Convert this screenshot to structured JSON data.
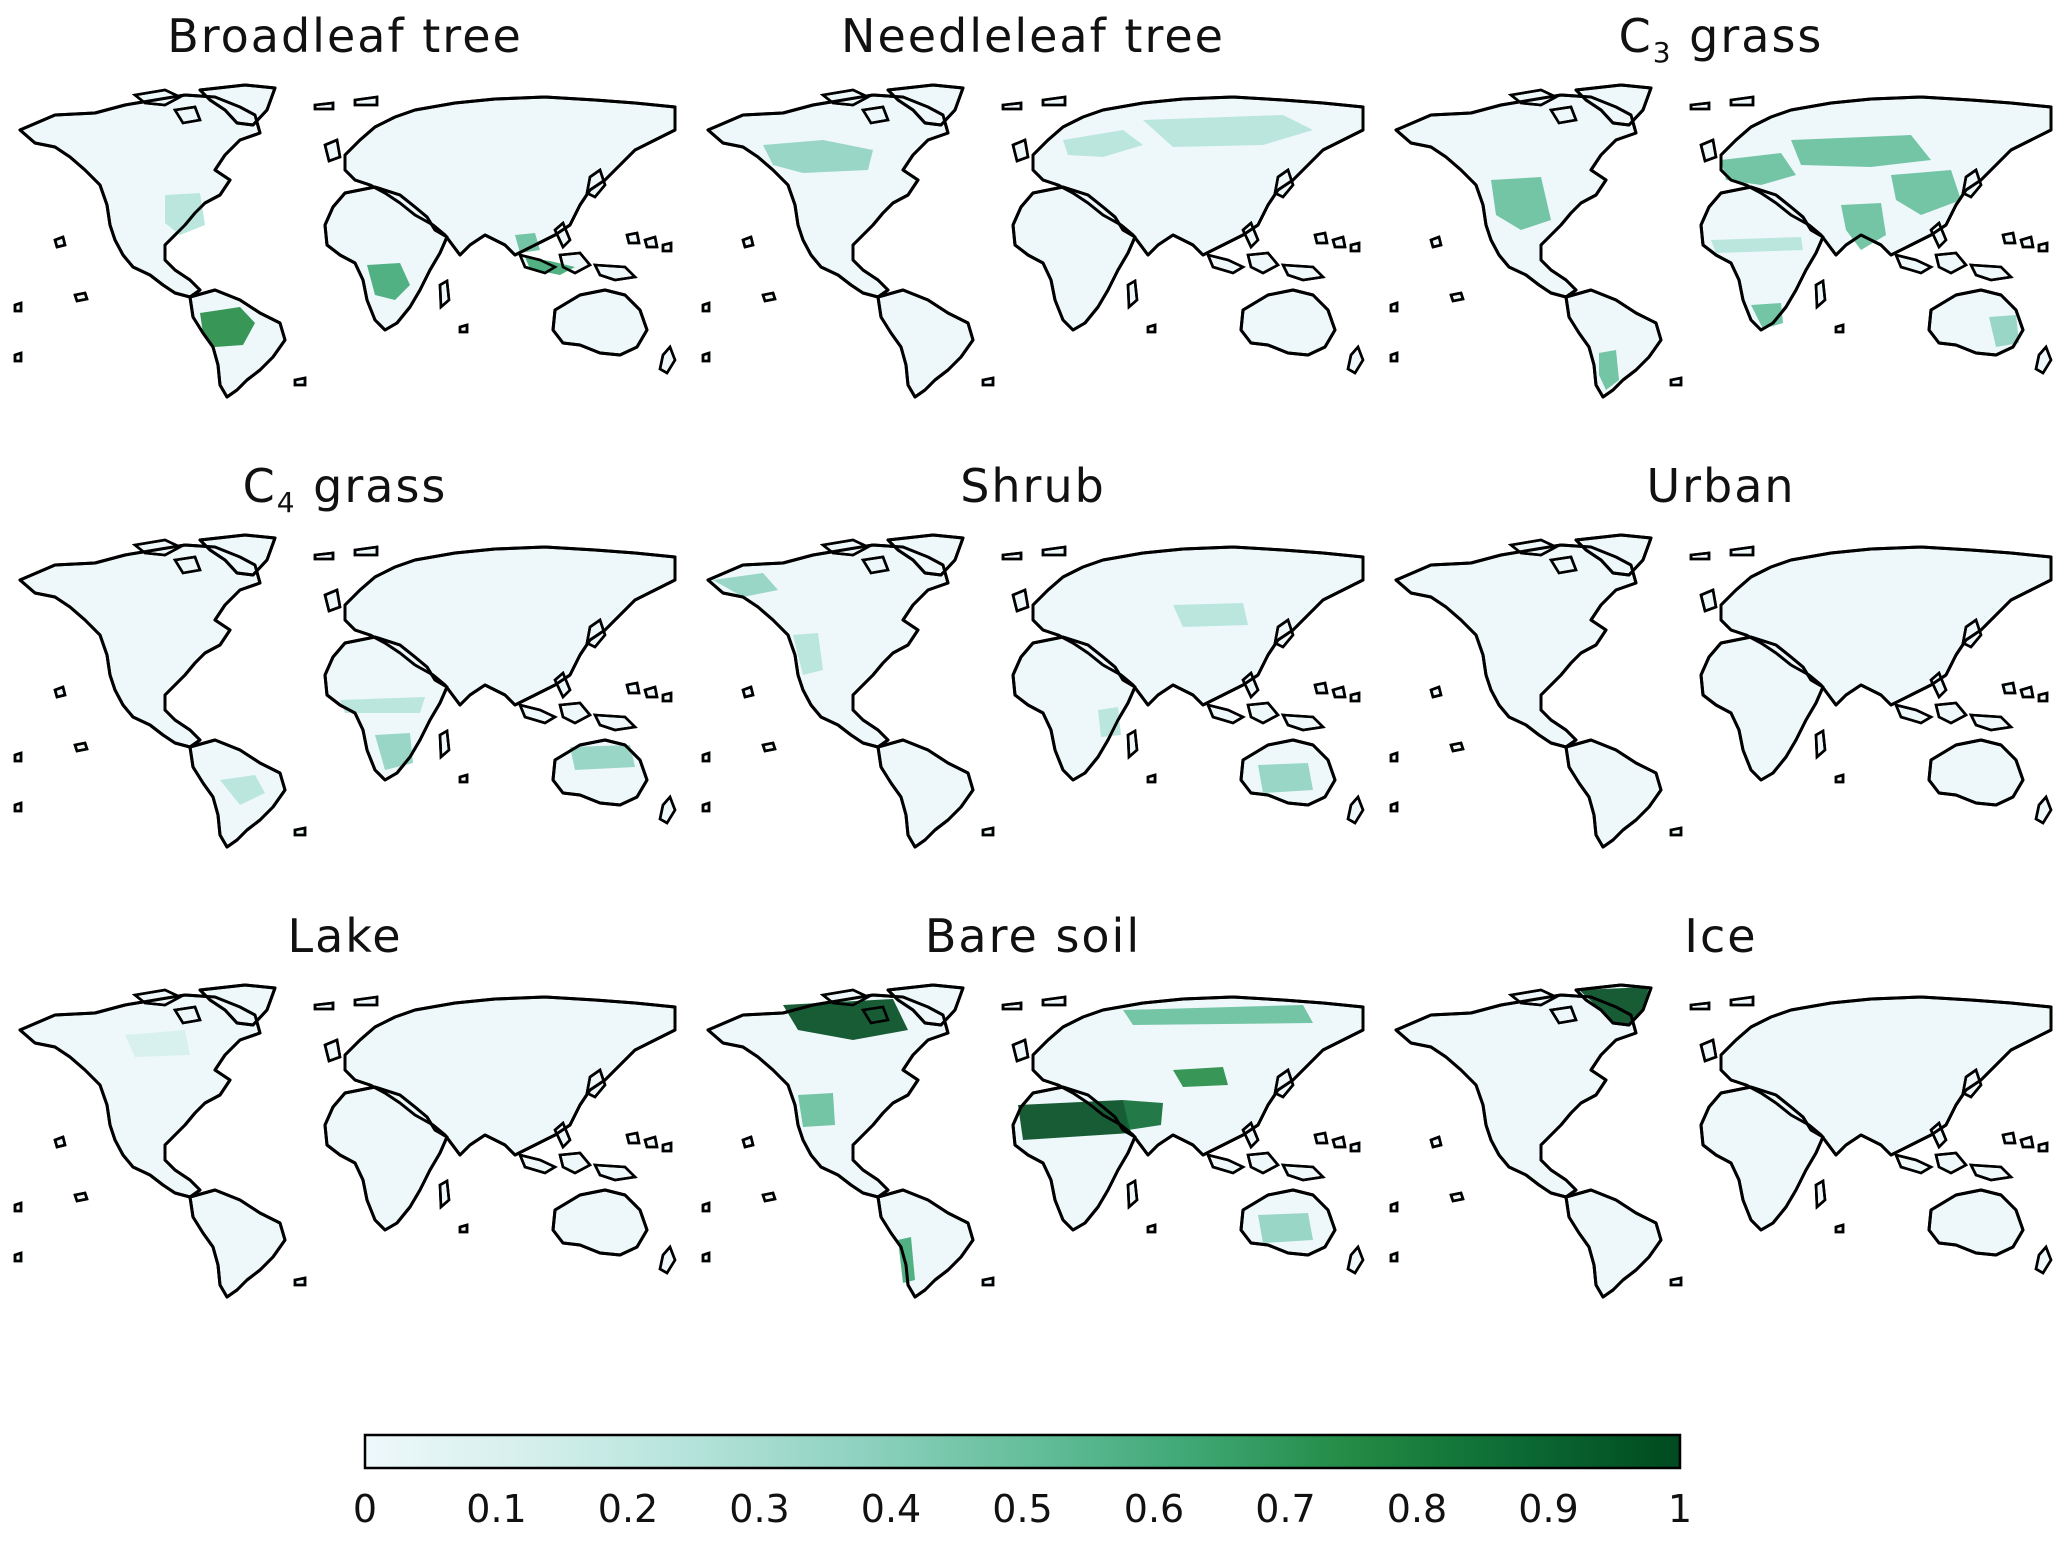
{
  "panels": [
    {
      "title": "Broadleaf tree",
      "subscript": "",
      "suffix": "",
      "patches": [
        "amazon",
        "congo",
        "se-asia",
        "indonesia",
        "east-us"
      ]
    },
    {
      "title": "Needleleaf tree",
      "subscript": "",
      "suffix": "",
      "patches": [
        "boreal-na",
        "boreal-eu",
        "siberia"
      ]
    },
    {
      "title": "C",
      "subscript": "3",
      "suffix": " grass",
      "patches": [
        "us-plains",
        "europe",
        "central-asia",
        "china",
        "india",
        "argentina",
        "south-africa",
        "sahel",
        "se-australia"
      ]
    },
    {
      "title": "C",
      "subscript": "4",
      "suffix": " grass",
      "patches": [
        "sahel-s",
        "southern-africa",
        "n-australia",
        "brazil-cerrado"
      ]
    },
    {
      "title": "Shrub",
      "subscript": "",
      "suffix": "",
      "patches": [
        "alaska",
        "west-us",
        "mongolia",
        "australia-inner",
        "east-africa"
      ]
    },
    {
      "title": "Urban",
      "subscript": "",
      "suffix": "",
      "patches": []
    },
    {
      "title": "Lake",
      "subscript": "",
      "suffix": "",
      "patches": [
        "canada-shield-light"
      ]
    },
    {
      "title": "Bare soil",
      "subscript": "",
      "suffix": "",
      "patches": [
        "canada-arctic",
        "sahara",
        "arabia",
        "central-asia-desert",
        "australia-inner",
        "atacama",
        "sw-us",
        "siberia-n"
      ]
    },
    {
      "title": "Ice",
      "subscript": "",
      "suffix": "",
      "patches": [
        "greenland"
      ]
    }
  ],
  "colorbar": {
    "min": 0,
    "max": 1,
    "colors": [
      "#eef8fb",
      "#d5efec",
      "#b4e3da",
      "#8fd2c0",
      "#66bf9c",
      "#3fa876",
      "#238b45",
      "#0c6b34",
      "#004a1f"
    ],
    "tick_labels": [
      "0",
      "0.1",
      "0.2",
      "0.3",
      "0.4",
      "0.5",
      "0.6",
      "0.7",
      "0.8",
      "0.9",
      "1"
    ]
  }
}
